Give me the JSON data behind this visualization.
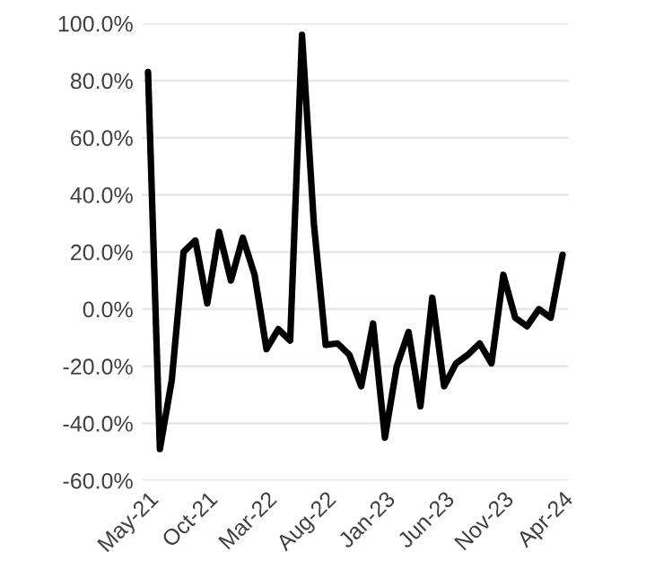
{
  "chart_data": {
    "type": "line",
    "categories": [
      "May-21",
      null,
      null,
      null,
      null,
      "Oct-21",
      null,
      null,
      null,
      null,
      "Mar-22",
      null,
      null,
      null,
      null,
      "Aug-22",
      null,
      null,
      null,
      null,
      "Jan-23",
      null,
      null,
      null,
      null,
      "Jun-23",
      null,
      null,
      null,
      null,
      "Nov-23",
      null,
      null,
      null,
      null,
      "Apr-24"
    ],
    "series": [
      {
        "color": "#000000",
        "values": [
          83,
          -49,
          -25,
          20,
          24,
          2,
          27,
          10,
          25,
          12,
          -14,
          -7,
          -11,
          96,
          30,
          -12.5,
          -12,
          -16,
          -27,
          -5,
          -45,
          -20,
          -8,
          -34,
          4,
          -27,
          -19,
          -16,
          -12,
          -19,
          12,
          -3,
          -6,
          0,
          -3,
          19
        ]
      }
    ],
    "ylim": [
      -60,
      100
    ],
    "yticks": [
      {
        "value": -60,
        "label": "-60.0%"
      },
      {
        "value": -40,
        "label": "-40.0%"
      },
      {
        "value": -20,
        "label": "-20.0%"
      },
      {
        "value": 0,
        "label": "0.0%"
      },
      {
        "value": 20,
        "label": "20.0%"
      },
      {
        "value": 40,
        "label": "40.0%"
      },
      {
        "value": 60,
        "label": "60.0%"
      },
      {
        "value": 80,
        "label": "80.0%"
      },
      {
        "value": 100,
        "label": "100.0%"
      }
    ],
    "grid": "y",
    "legend": false,
    "marker": "none",
    "line_style": "solid"
  }
}
